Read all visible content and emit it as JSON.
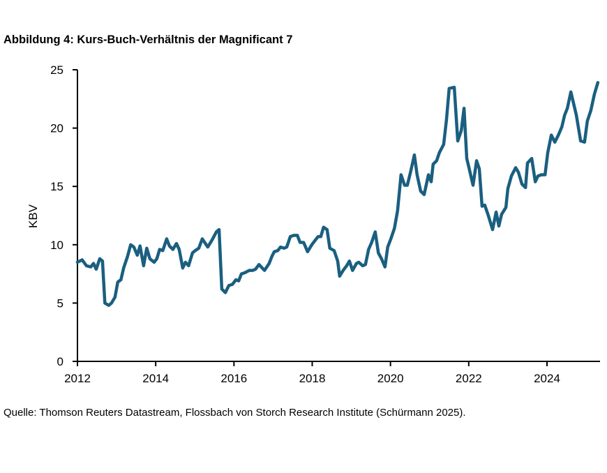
{
  "title": "Abbildung 4: Kurs-Buch-Verhältnis der Magnificant 7",
  "source": "Quelle: Thomson Reuters Datastream, Flossbach von Storch Research Institute (Schürmann 2025).",
  "chart_data": {
    "type": "line",
    "title": "Abbildung 4: Kurs-Buch-Verhältnis der Magnificant 7",
    "xlabel": "",
    "ylabel": "KBV",
    "xlim": [
      2012,
      2025.4
    ],
    "ylim": [
      0,
      25
    ],
    "xticks": [
      "2012",
      "2014",
      "2016",
      "2018",
      "2020",
      "2022",
      "2024"
    ],
    "yticks": [
      "0",
      "5",
      "10",
      "15",
      "20",
      "25"
    ],
    "grid": false,
    "legend": "none",
    "color": "#1a5f80",
    "x": [
      2012.0,
      2012.12,
      2012.23,
      2012.34,
      2012.41,
      2012.48,
      2012.57,
      2012.64,
      2012.7,
      2012.8,
      2012.87,
      2012.96,
      2013.03,
      2013.11,
      2013.18,
      2013.28,
      2013.36,
      2013.44,
      2013.53,
      2013.6,
      2013.69,
      2013.77,
      2013.85,
      2013.96,
      2014.03,
      2014.1,
      2014.18,
      2014.28,
      2014.35,
      2014.44,
      2014.53,
      2014.6,
      2014.69,
      2014.76,
      2014.84,
      2014.94,
      2015.01,
      2015.1,
      2015.19,
      2015.33,
      2015.44,
      2015.55,
      2015.62,
      2015.69,
      2015.78,
      2015.87,
      2015.96,
      2016.05,
      2016.12,
      2016.19,
      2016.28,
      2016.39,
      2016.48,
      2016.55,
      2016.64,
      2016.78,
      2016.9,
      2016.97,
      2017.03,
      2017.12,
      2017.19,
      2017.28,
      2017.35,
      2017.44,
      2017.53,
      2017.62,
      2017.69,
      2017.78,
      2017.88,
      2017.99,
      2018.08,
      2018.15,
      2018.22,
      2018.29,
      2018.38,
      2018.45,
      2018.56,
      2018.65,
      2018.7,
      2018.79,
      2018.88,
      2018.95,
      2019.03,
      2019.13,
      2019.19,
      2019.29,
      2019.36,
      2019.44,
      2019.52,
      2019.61,
      2019.69,
      2019.77,
      2019.86,
      2019.93,
      2020.01,
      2020.1,
      2020.18,
      2020.27,
      2020.36,
      2020.43,
      2020.51,
      2020.61,
      2020.68,
      2020.77,
      2020.86,
      2020.97,
      2021.04,
      2021.09,
      2021.18,
      2021.25,
      2021.36,
      2021.43,
      2021.5,
      2021.63,
      2021.72,
      2021.81,
      2021.88,
      2021.95,
      2022.0,
      2022.11,
      2022.2,
      2022.27,
      2022.34,
      2022.41,
      2022.5,
      2022.61,
      2022.7,
      2022.77,
      2022.84,
      2022.95,
      2023.0,
      2023.09,
      2023.2,
      2023.27,
      2023.36,
      2023.45,
      2023.5,
      2023.61,
      2023.7,
      2023.77,
      2023.86,
      2023.95,
      2024.02,
      2024.11,
      2024.2,
      2024.29,
      2024.38,
      2024.45,
      2024.52,
      2024.61,
      2024.75,
      2024.86,
      2024.96,
      2025.03,
      2025.12,
      2025.21,
      2025.3
    ],
    "y": [
      8.5,
      8.7,
      8.2,
      8.1,
      8.4,
      7.9,
      8.8,
      8.6,
      5.0,
      4.8,
      5.0,
      5.5,
      6.8,
      7.0,
      8.0,
      9.0,
      10.0,
      9.8,
      9.1,
      9.9,
      8.2,
      9.7,
      8.8,
      8.5,
      8.8,
      9.6,
      9.5,
      10.5,
      9.9,
      9.6,
      10.1,
      9.6,
      8.0,
      8.5,
      8.2,
      9.3,
      9.5,
      9.7,
      10.5,
      9.8,
      10.4,
      11.1,
      11.3,
      6.2,
      5.9,
      6.5,
      6.6,
      7.0,
      6.9,
      7.5,
      7.6,
      7.8,
      7.8,
      7.9,
      8.3,
      7.8,
      8.4,
      9.0,
      9.4,
      9.5,
      9.8,
      9.7,
      9.8,
      10.7,
      10.8,
      10.8,
      10.2,
      10.2,
      9.4,
      10.0,
      10.4,
      10.7,
      10.7,
      11.5,
      11.3,
      9.7,
      9.5,
      8.6,
      7.3,
      7.8,
      8.2,
      8.6,
      7.8,
      8.4,
      8.5,
      8.2,
      8.3,
      9.6,
      10.2,
      11.1,
      9.3,
      8.8,
      8.1,
      9.8,
      10.5,
      11.4,
      12.9,
      16.0,
      15.1,
      15.1,
      16.2,
      17.7,
      16.0,
      14.6,
      14.3,
      16.0,
      15.4,
      16.9,
      17.2,
      17.9,
      18.6,
      20.7,
      23.4,
      23.5,
      18.9,
      19.8,
      21.7,
      17.4,
      16.7,
      15.1,
      17.2,
      16.5,
      13.3,
      13.4,
      12.5,
      11.3,
      12.8,
      11.6,
      12.6,
      13.2,
      14.8,
      15.9,
      16.6,
      16.2,
      15.2,
      14.9,
      17.0,
      17.4,
      15.4,
      15.9,
      16.0,
      16.0,
      17.9,
      19.4,
      18.8,
      19.4,
      20.1,
      21.1,
      21.7,
      23.1,
      21.1,
      18.9,
      18.8,
      20.6,
      21.5,
      22.9,
      23.9
    ]
  }
}
